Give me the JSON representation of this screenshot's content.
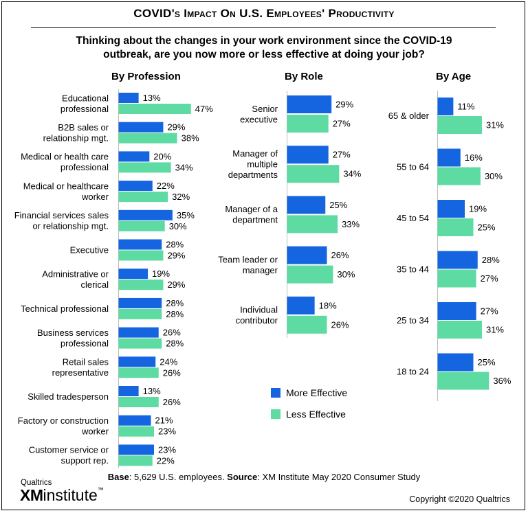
{
  "title": "COVID's Impact On U.S. Employees' Productivity",
  "question": "Thinking about the changes in your work environment since the COVID-19 outbreak, are you now more or less effective at doing your job?",
  "footer": {
    "base_label": "Base",
    "base_text": ": 5,629 U.S. employees. ",
    "source_label": "Source",
    "source_text": ": XM Institute May 2020 Consumer Study"
  },
  "copyright": "Copyright ©2020 Qualtrics",
  "logo": {
    "top": "Qualtrics",
    "xm": "XM",
    "rest": "institute",
    "tm": "™"
  },
  "colors": {
    "more": "#1565e0",
    "less": "#5ddba2"
  },
  "chart_data": [
    {
      "type": "bar",
      "title": "By Profession",
      "categories": [
        "Educational professional",
        "B2B sales or relationship mgt.",
        "Medical or health care professional",
        "Medical or healthcare worker",
        "Financial services sales or relationship mgt.",
        "Executive",
        "Administrative or clerical",
        "Technical professional",
        "Business services professional",
        "Retail sales representative",
        "Skilled tradesperson",
        "Factory or construction worker",
        "Customer service or support rep."
      ],
      "category_lines": [
        [
          "Educational",
          "professional"
        ],
        [
          "B2B sales or",
          "relationship mgt."
        ],
        [
          "Medical or health care",
          "professional"
        ],
        [
          "Medical or healthcare",
          "worker"
        ],
        [
          "Financial services sales",
          "or relationship mgt."
        ],
        [
          "Executive"
        ],
        [
          "Administrative or",
          "clerical"
        ],
        [
          "Technical professional"
        ],
        [
          "Business services",
          "professional"
        ],
        [
          "Retail sales",
          "representative"
        ],
        [
          "Skilled tradesperson"
        ],
        [
          "Factory or construction",
          "worker"
        ],
        [
          "Customer service or",
          "support rep."
        ]
      ],
      "series": [
        {
          "name": "More Effective",
          "values": [
            13,
            29,
            20,
            22,
            35,
            28,
            19,
            28,
            26,
            24,
            13,
            21,
            23
          ]
        },
        {
          "name": "Less Effective",
          "values": [
            47,
            38,
            34,
            32,
            30,
            29,
            29,
            28,
            28,
            26,
            26,
            23,
            22
          ]
        }
      ],
      "value_suffix": "%"
    },
    {
      "type": "bar",
      "title": "By Role",
      "categories": [
        "Senior executive",
        "Manager of multiple departments",
        "Manager of a department",
        "Team leader or manager",
        "Individual contributor"
      ],
      "category_lines": [
        [
          "Senior",
          "executive"
        ],
        [
          "Manager of",
          "multiple",
          "departments"
        ],
        [
          "Manager of a",
          "department"
        ],
        [
          "Team leader or",
          "manager"
        ],
        [
          "Individual",
          "contributor"
        ]
      ],
      "series": [
        {
          "name": "More Effective",
          "values": [
            29,
            27,
            25,
            26,
            18
          ]
        },
        {
          "name": "Less Effective",
          "values": [
            27,
            34,
            33,
            30,
            26
          ]
        }
      ],
      "value_suffix": "%"
    },
    {
      "type": "bar",
      "title": "By Age",
      "categories": [
        "65 & older",
        "55 to 64",
        "45 to 54",
        "35 to 44",
        "25 to 34",
        "18 to 24"
      ],
      "category_lines": [
        [
          "65 & older"
        ],
        [
          "55 to 64"
        ],
        [
          "45 to 54"
        ],
        [
          "35 to 44"
        ],
        [
          "25 to 34"
        ],
        [
          "18 to 24"
        ]
      ],
      "series": [
        {
          "name": "More Effective",
          "values": [
            11,
            16,
            19,
            28,
            27,
            25
          ]
        },
        {
          "name": "Less Effective",
          "values": [
            31,
            30,
            25,
            27,
            31,
            36
          ]
        }
      ],
      "value_suffix": "%"
    }
  ],
  "legend": {
    "more": "More Effective",
    "less": "Less Effective"
  }
}
